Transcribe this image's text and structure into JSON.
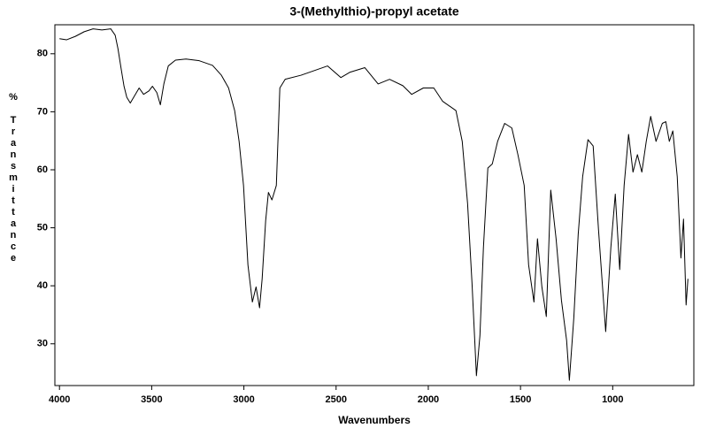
{
  "chart_data": {
    "type": "line",
    "title": "3-(Methylthio)-propyl acetate",
    "xlabel": "Wavenumbers",
    "ylabel": "% Transmittance",
    "color": "#000000",
    "xlim": [
      4025,
      560
    ],
    "ylim": [
      22.8,
      85
    ],
    "xticks": [
      4000,
      3500,
      3000,
      2500,
      2000,
      1500,
      1000
    ],
    "yticks": [
      30,
      40,
      50,
      60,
      70,
      80
    ],
    "x": [
      4000,
      3962,
      3914,
      3866,
      3818,
      3770,
      3722,
      3698,
      3683,
      3664,
      3650,
      3635,
      3616,
      3592,
      3568,
      3544,
      3515,
      3496,
      3472,
      3453,
      3434,
      3410,
      3371,
      3314,
      3242,
      3170,
      3122,
      3083,
      3050,
      3026,
      3002,
      2978,
      2954,
      2934,
      2915,
      2901,
      2882,
      2867,
      2848,
      2824,
      2805,
      2776,
      2690,
      2618,
      2546,
      2474,
      2426,
      2344,
      2272,
      2210,
      2138,
      2090,
      2027,
      1970,
      1922,
      1850,
      1816,
      1787,
      1763,
      1739,
      1720,
      1701,
      1677,
      1653,
      1624,
      1586,
      1547,
      1514,
      1480,
      1456,
      1427,
      1408,
      1384,
      1360,
      1336,
      1307,
      1278,
      1250,
      1235,
      1211,
      1187,
      1163,
      1134,
      1106,
      1077,
      1038,
      1010,
      986,
      962,
      938,
      914,
      890,
      866,
      842,
      818,
      794,
      765,
      731,
      712,
      693,
      674,
      650,
      630,
      616,
      602,
      592
    ],
    "values": [
      82.6,
      82.4,
      83,
      83.8,
      84.3,
      84.1,
      84.3,
      83.2,
      80.9,
      77.1,
      74.4,
      72.5,
      71.5,
      72.8,
      74.1,
      73,
      73.6,
      74.4,
      73.3,
      71.2,
      74.8,
      77.9,
      78.9,
      79.1,
      78.8,
      78,
      76.3,
      74.1,
      70.2,
      64.9,
      57.3,
      43.6,
      37.2,
      39.8,
      36.2,
      41.2,
      51.2,
      56.1,
      54.8,
      57.3,
      74.1,
      75.6,
      76.3,
      77.1,
      77.9,
      75.9,
      76.8,
      77.6,
      74.8,
      75.6,
      74.5,
      73,
      74.1,
      74.1,
      71.8,
      70.2,
      64.9,
      54.2,
      40.5,
      24.5,
      31.4,
      46.6,
      60.3,
      61,
      64.9,
      68,
      67.2,
      62.6,
      57.3,
      43.6,
      37.2,
      48.1,
      39.8,
      34.7,
      56.5,
      48.1,
      37.5,
      30.6,
      23.7,
      34.4,
      48.9,
      58.8,
      65.2,
      64.1,
      49.7,
      32.1,
      46.6,
      55.8,
      42.8,
      57.3,
      66.1,
      59.6,
      62.6,
      59.6,
      64.9,
      69.2,
      64.9,
      68,
      68.3,
      64.9,
      66.7,
      58.8,
      44.8,
      51.5,
      36.7,
      41.2
    ]
  }
}
